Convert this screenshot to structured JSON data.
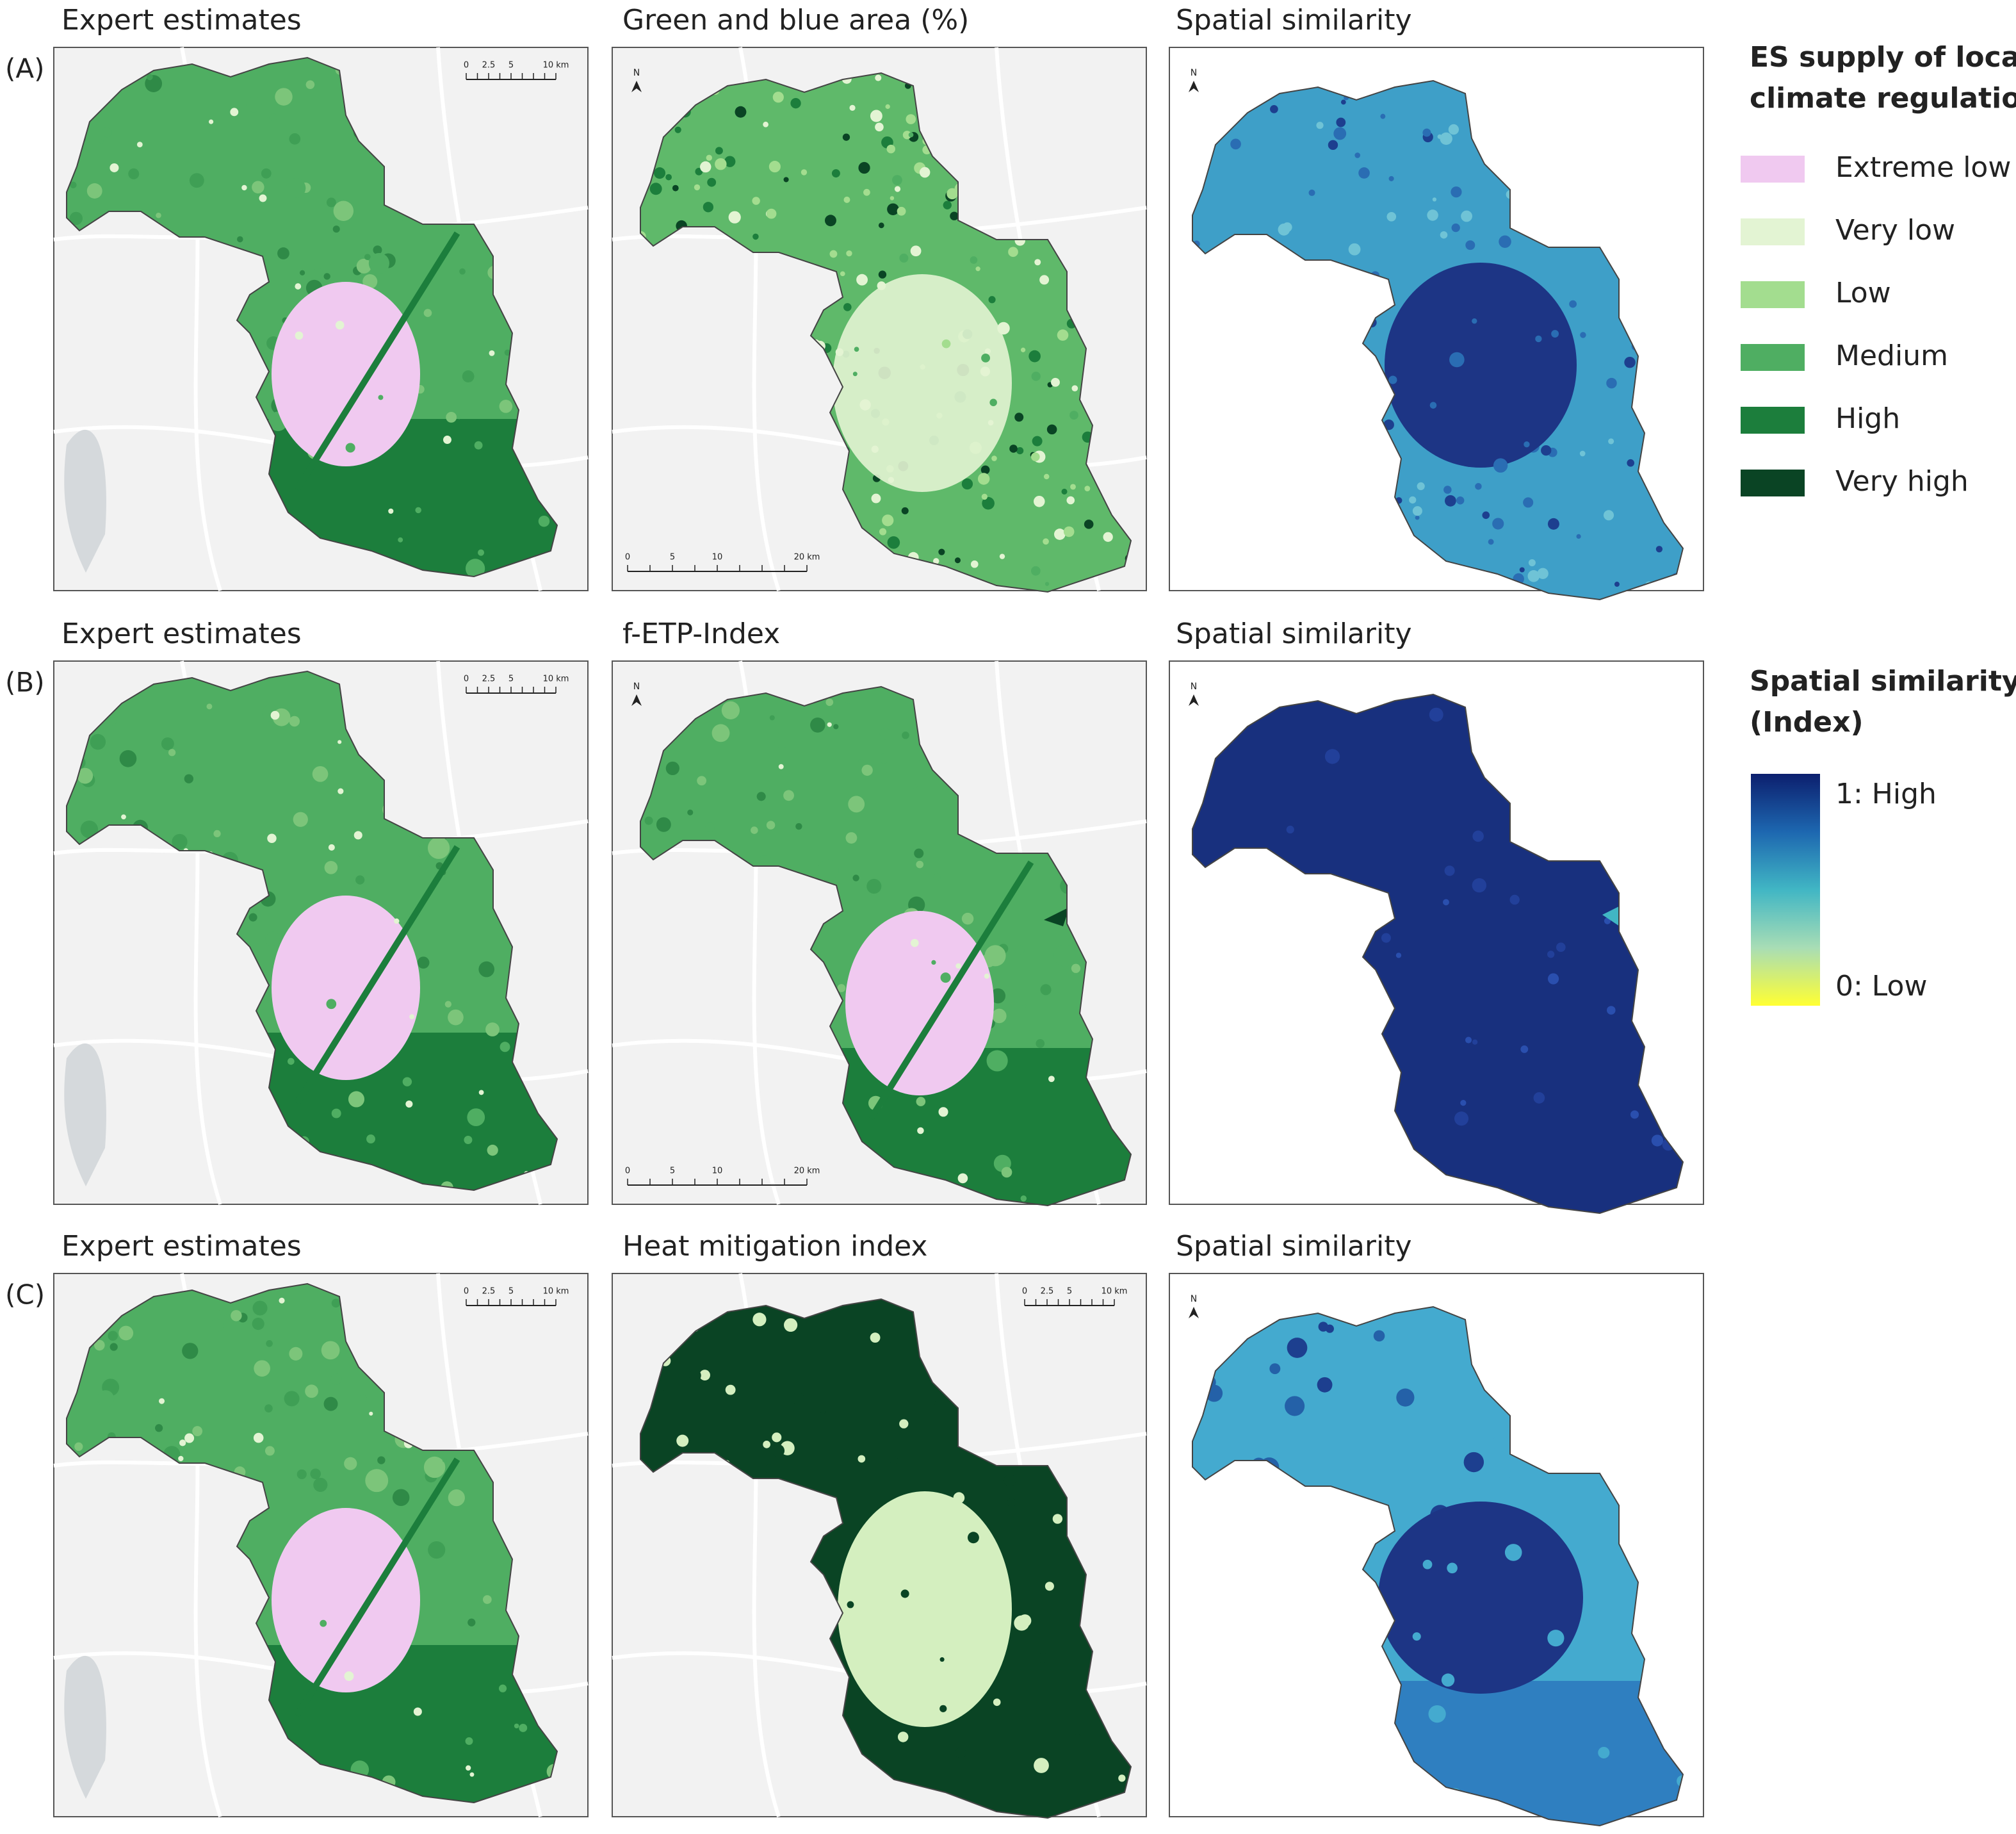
{
  "rows": [
    {
      "label": "(A)",
      "panels": [
        {
          "title": "Expert estimates",
          "scalebar": {
            "labels": [
              "0",
              "2.5",
              "5",
              "10 km"
            ],
            "corner": "top-right"
          }
        },
        {
          "title": "Green and blue area (%)",
          "north": "N",
          "scalebar": {
            "labels": [
              "0",
              "5",
              "10",
              "20 km"
            ],
            "corner": "bottom-left"
          }
        },
        {
          "title": "Spatial similarity",
          "north": "N"
        }
      ]
    },
    {
      "label": "(B)",
      "panels": [
        {
          "title": "Expert estimates",
          "scalebar": {
            "labels": [
              "0",
              "2.5",
              "5",
              "10 km"
            ],
            "corner": "top-right"
          }
        },
        {
          "title": "f-ETP-Index",
          "north": "N",
          "scalebar": {
            "labels": [
              "0",
              "5",
              "10",
              "20 km"
            ],
            "corner": "bottom-left"
          }
        },
        {
          "title": "Spatial similarity",
          "north": "N"
        }
      ]
    },
    {
      "label": "(C)",
      "panels": [
        {
          "title": "Expert estimates",
          "scalebar": {
            "labels": [
              "0",
              "2.5",
              "5",
              "10 km"
            ],
            "corner": "top-right"
          }
        },
        {
          "title": "Heat mitigation index",
          "scalebar": {
            "labels": [
              "0",
              "2.5",
              "5",
              "10 km"
            ],
            "corner": "top-right"
          }
        },
        {
          "title": "Spatial similarity",
          "north": "N"
        }
      ]
    }
  ],
  "legend_supply": {
    "title_lines": [
      "ES supply of local",
      "climate regulation"
    ],
    "items": [
      {
        "name": "Extreme low",
        "color": "#f0c9f0"
      },
      {
        "name": "Very low",
        "color": "#e3f4d3"
      },
      {
        "name": "Low",
        "color": "#a3dd8f"
      },
      {
        "name": "Medium",
        "color": "#4fae62"
      },
      {
        "name": "High",
        "color": "#1c7e3c"
      },
      {
        "name": "Very high",
        "color": "#0a4424"
      }
    ]
  },
  "legend_similarity": {
    "title_lines": [
      "Spatial similarity",
      "(Index)"
    ],
    "high": "1: High",
    "low": "0: Low",
    "colors": [
      "#0c1f6e",
      "#1d67b0",
      "#41b6c4",
      "#a8ddb5",
      "#ffff33"
    ]
  }
}
